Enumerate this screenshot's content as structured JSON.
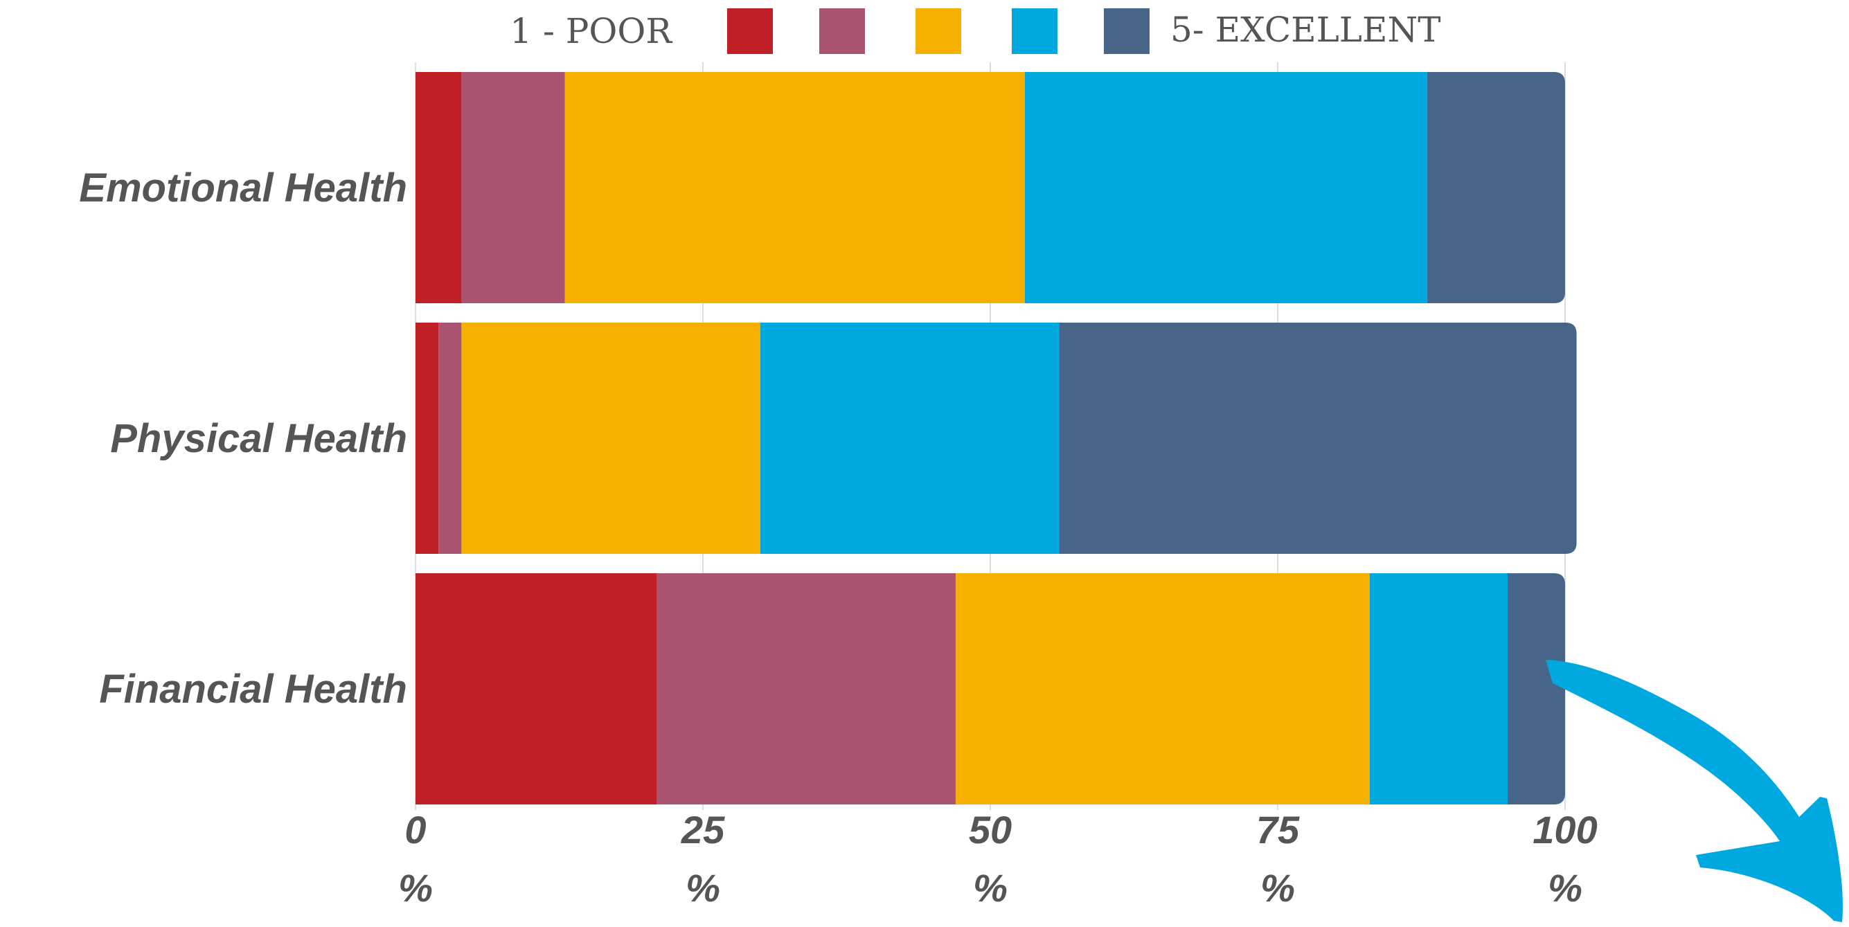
{
  "chart_data": {
    "type": "bar",
    "orientation": "horizontal",
    "stacked": true,
    "title": "",
    "xlabel": "",
    "ylabel": "",
    "xlim": [
      0,
      100
    ],
    "grid": true,
    "legend_position": "top",
    "categories": [
      "Emotional Health",
      "Physical Health",
      "Financial Health"
    ],
    "series": [
      {
        "values": [
          4,
          2,
          21
        ],
        "color": "#be2026"
      },
      {
        "values": [
          9,
          2,
          26
        ],
        "color": "#ab5471"
      },
      {
        "values": [
          40,
          26,
          36
        ],
        "color": "#f6b000"
      },
      {
        "values": [
          35,
          26,
          12
        ],
        "color": "#00a8e0"
      },
      {
        "values": [
          12,
          45,
          5
        ],
        "color": "#476588"
      }
    ],
    "legend": {
      "left_label": "1 - POOR",
      "right_label": "5- EXCELLENT"
    },
    "x_ticks": [
      {
        "value": 0,
        "line1": "0",
        "line2": "%"
      },
      {
        "value": 25,
        "line1": "25",
        "line2": "%"
      },
      {
        "value": 50,
        "line1": "50",
        "line2": "%"
      },
      {
        "value": 75,
        "line1": "75",
        "line2": "%"
      },
      {
        "value": 100,
        "line1": "100",
        "line2": "%"
      }
    ],
    "arrow_color": "#00a8e0"
  }
}
